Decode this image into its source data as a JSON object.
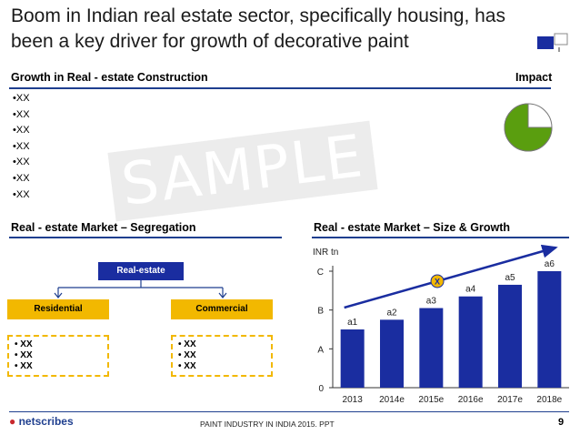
{
  "title": "Boom in Indian real estate sector, specifically housing, has been a key driver for growth of decorative paint",
  "sections": {
    "growth_header": "Growth in Real - estate Construction",
    "impact_header": "Impact",
    "segregation_header": "Real - estate Market – Segregation",
    "size_header": "Real - estate Market  – Size & Growth"
  },
  "bullets": [
    "XX",
    "XX",
    "XX",
    "XX",
    "XX",
    "XX",
    "XX"
  ],
  "watermark": "SAMPLE",
  "impact_pie": {
    "filled_fraction": 0.75,
    "fill_color": "#5a9e0f"
  },
  "segregation": {
    "root": "Real-estate",
    "left": "Residential",
    "right": "Commercial",
    "left_items": [
      "XX",
      "XX",
      "XX"
    ],
    "right_items": [
      "XX",
      "XX",
      "XX"
    ]
  },
  "chart_data": {
    "type": "bar",
    "ylabel": "INR tn",
    "categories": [
      "2013",
      "2014e",
      "2015e",
      "2016e",
      "2017e",
      "2018e"
    ],
    "values": [
      1.5,
      1.75,
      2.05,
      2.35,
      2.65,
      3.0
    ],
    "data_labels": [
      "a1",
      "a2",
      "a3",
      "a4",
      "a5",
      "a6"
    ],
    "y_ticks": [
      "0",
      "A",
      "B",
      "C"
    ],
    "y_tick_values": [
      0,
      1,
      2,
      3
    ],
    "ylim": [
      0,
      3.0
    ],
    "bar_color": "#1a2da0",
    "trend_marker": "X",
    "grid": false
  },
  "footer": {
    "text": "PAINT INDUSTRY IN INDIA 2015. PPT",
    "page": "9",
    "logo": "netscribes"
  }
}
